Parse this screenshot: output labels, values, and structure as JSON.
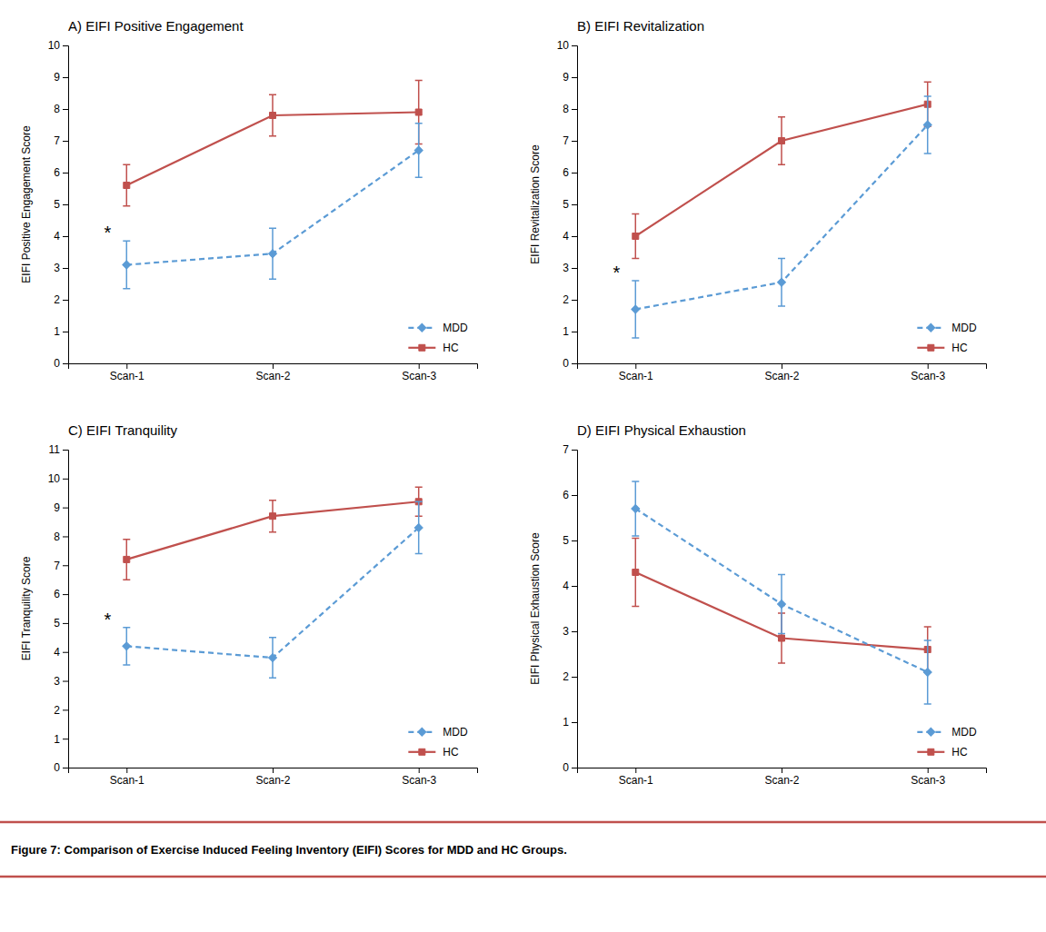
{
  "chart_data": [
    {
      "type": "line",
      "title": "A) EIFI Positive Engagement",
      "ylabel": "EIFI Positive Engagement Score",
      "categories": [
        "Scan-1",
        "Scan-2",
        "Scan-3"
      ],
      "ylim": [
        0,
        10
      ],
      "yticks": [
        0,
        1,
        2,
        3,
        4,
        5,
        6,
        7,
        8,
        9,
        10
      ],
      "grid": false,
      "legend": "lower right",
      "series": [
        {
          "name": "MDD",
          "color": "#5B9BD5",
          "marker": "diamond",
          "line_style": "dashed",
          "values": [
            3.1,
            3.45,
            6.7
          ],
          "errors": [
            0.75,
            0.8,
            0.85
          ]
        },
        {
          "name": "HC",
          "color": "#C0504D",
          "marker": "square",
          "line_style": "solid",
          "values": [
            5.6,
            7.8,
            7.9
          ],
          "errors": [
            0.65,
            0.65,
            1.0
          ]
        }
      ],
      "annotations": [
        {
          "text": "*",
          "series": "MDD",
          "category": "Scan-1"
        }
      ]
    },
    {
      "type": "line",
      "title": "B) EIFI Revitalization",
      "ylabel": "EIFI Revitalization Score",
      "categories": [
        "Scan-1",
        "Scan-2",
        "Scan-3"
      ],
      "ylim": [
        0,
        10
      ],
      "yticks": [
        0,
        1,
        2,
        3,
        4,
        5,
        6,
        7,
        8,
        9,
        10
      ],
      "grid": false,
      "legend": "lower right",
      "series": [
        {
          "name": "MDD",
          "color": "#5B9BD5",
          "marker": "diamond",
          "line_style": "dashed",
          "values": [
            1.7,
            2.55,
            7.5
          ],
          "errors": [
            0.9,
            0.75,
            0.9
          ]
        },
        {
          "name": "HC",
          "color": "#C0504D",
          "marker": "square",
          "line_style": "solid",
          "values": [
            4.0,
            7.0,
            8.15
          ],
          "errors": [
            0.7,
            0.75,
            0.7
          ]
        }
      ],
      "annotations": [
        {
          "text": "*",
          "series": "MDD",
          "category": "Scan-1"
        }
      ]
    },
    {
      "type": "line",
      "title": "C) EIFI Tranquility",
      "ylabel": "EIFI Tranquility Score",
      "categories": [
        "Scan-1",
        "Scan-2",
        "Scan-3"
      ],
      "ylim": [
        0,
        11
      ],
      "yticks": [
        0,
        1,
        2,
        3,
        4,
        5,
        6,
        7,
        8,
        9,
        10,
        11
      ],
      "grid": false,
      "legend": "lower right",
      "series": [
        {
          "name": "MDD",
          "color": "#5B9BD5",
          "marker": "diamond",
          "line_style": "dashed",
          "values": [
            4.2,
            3.8,
            8.3
          ],
          "errors": [
            0.65,
            0.7,
            0.9
          ]
        },
        {
          "name": "HC",
          "color": "#C0504D",
          "marker": "square",
          "line_style": "solid",
          "values": [
            7.2,
            8.7,
            9.2
          ],
          "errors": [
            0.7,
            0.55,
            0.5
          ]
        }
      ],
      "annotations": [
        {
          "text": "*",
          "series": "MDD",
          "category": "Scan-1"
        }
      ]
    },
    {
      "type": "line",
      "title": "D) EIFI Physical Exhaustion",
      "ylabel": "EIFI Physical Exhaustion Score",
      "categories": [
        "Scan-1",
        "Scan-2",
        "Scan-3"
      ],
      "ylim": [
        0,
        7
      ],
      "yticks": [
        0,
        1,
        2,
        3,
        4,
        5,
        6,
        7
      ],
      "grid": false,
      "legend": "lower right",
      "series": [
        {
          "name": "MDD",
          "color": "#5B9BD5",
          "marker": "diamond",
          "line_style": "dashed",
          "values": [
            5.7,
            3.6,
            2.1
          ],
          "errors": [
            0.6,
            0.65,
            0.7
          ]
        },
        {
          "name": "HC",
          "color": "#C0504D",
          "marker": "square",
          "line_style": "solid",
          "values": [
            4.3,
            2.85,
            2.6
          ],
          "errors": [
            0.75,
            0.55,
            0.5
          ]
        }
      ]
    }
  ],
  "caption": "Figure 7: Comparison of Exercise Induced Feeling Inventory (EIFI) Scores for MDD and HC Groups."
}
